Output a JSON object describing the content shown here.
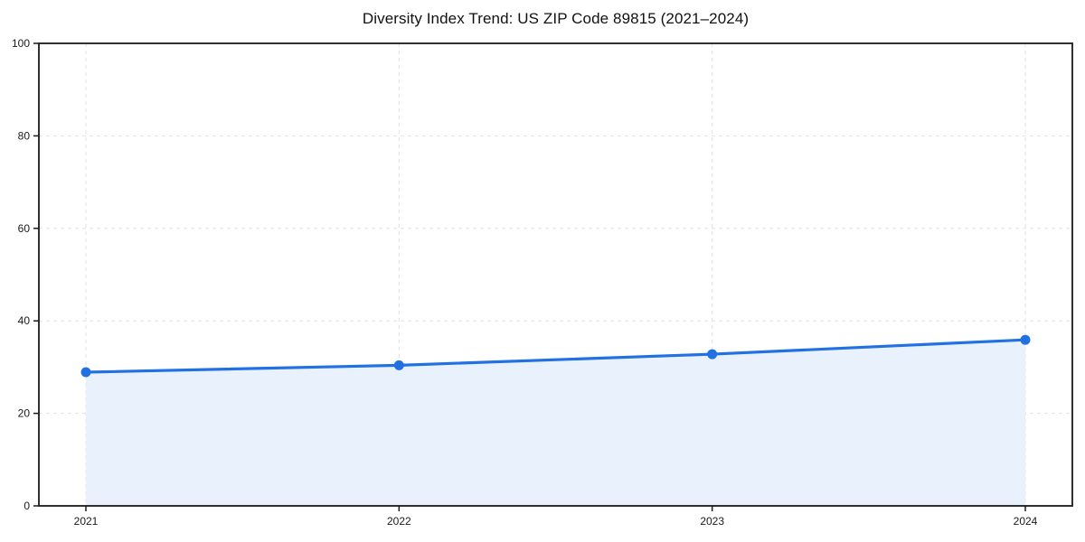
{
  "chart_data": {
    "type": "line",
    "title": "Diversity Index Trend: US ZIP Code 89815 (2021–2024)",
    "x": [
      "2021",
      "2022",
      "2023",
      "2024"
    ],
    "series": [
      {
        "name": "Diversity Index",
        "values": [
          28.9,
          30.4,
          32.8,
          35.9
        ]
      }
    ],
    "xlabel": "",
    "ylabel": "",
    "ylim": [
      0,
      100
    ],
    "yticks": [
      0,
      20,
      40,
      60,
      80,
      100
    ],
    "grid": "dashed, horizontal and vertical",
    "legend": "none",
    "area_fill": true,
    "marker": "circle",
    "colors": {
      "line": "#2271e3",
      "marker": "#2271e3",
      "fill": "#e9f1fc",
      "grid": "#e2e2e2",
      "axis": "#1a1a1a",
      "text": "#1a1a1a",
      "background": "#ffffff"
    }
  }
}
